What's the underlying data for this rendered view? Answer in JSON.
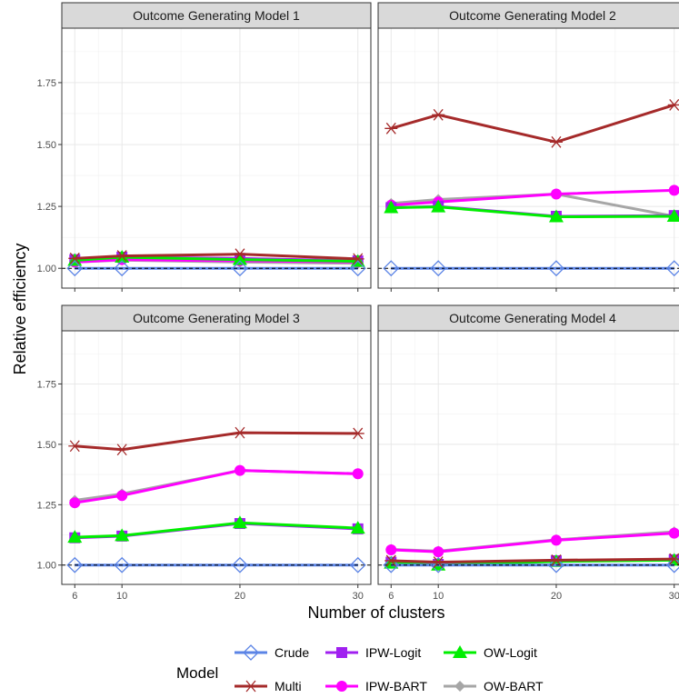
{
  "chart_data": {
    "type": "line",
    "xlabel": "Number of clusters",
    "ylabel": "Relative efficiency",
    "x": [
      6,
      10,
      20,
      30
    ],
    "x_ticks": [
      "6",
      "10",
      "20",
      "30"
    ],
    "y_ticks": [
      "1.00",
      "1.25",
      "1.50",
      "1.75"
    ],
    "ylim": [
      0.92,
      1.97
    ],
    "reference_line": 1.0,
    "legend_title": "Model",
    "legend_position": "bottom",
    "panels": [
      {
        "title": "Outcome Generating Model 1",
        "series": [
          {
            "name": "Crude",
            "values": [
              1.0,
              1.0,
              1.0,
              1.0
            ]
          },
          {
            "name": "IPW-Logit",
            "values": [
              1.035,
              1.045,
              1.04,
              1.03
            ]
          },
          {
            "name": "OW-Logit",
            "values": [
              1.032,
              1.045,
              1.035,
              1.028
            ]
          },
          {
            "name": "Multi",
            "values": [
              1.04,
              1.05,
              1.057,
              1.038
            ]
          },
          {
            "name": "IPW-BART",
            "values": [
              1.025,
              1.035,
              1.03,
              1.025
            ]
          },
          {
            "name": "OW-BART",
            "values": [
              1.025,
              1.033,
              1.025,
              1.02
            ]
          }
        ]
      },
      {
        "title": "Outcome Generating Model 2",
        "series": [
          {
            "name": "Crude",
            "values": [
              1.0,
              1.0,
              1.0,
              1.0
            ]
          },
          {
            "name": "IPW-Logit",
            "values": [
              1.245,
              1.25,
              1.21,
              1.213
            ]
          },
          {
            "name": "OW-Logit",
            "values": [
              1.245,
              1.248,
              1.208,
              1.21
            ]
          },
          {
            "name": "Multi",
            "values": [
              1.565,
              1.62,
              1.51,
              1.66
            ]
          },
          {
            "name": "IPW-BART",
            "values": [
              1.255,
              1.268,
              1.3,
              1.315
            ]
          },
          {
            "name": "OW-BART",
            "values": [
              1.262,
              1.278,
              1.3,
              1.21
            ]
          }
        ]
      },
      {
        "title": "Outcome Generating Model 3",
        "series": [
          {
            "name": "Crude",
            "values": [
              1.0,
              1.0,
              1.0,
              1.0
            ]
          },
          {
            "name": "IPW-Logit",
            "values": [
              1.113,
              1.12,
              1.172,
              1.15
            ]
          },
          {
            "name": "OW-Logit",
            "values": [
              1.115,
              1.122,
              1.175,
              1.153
            ]
          },
          {
            "name": "Multi",
            "values": [
              1.493,
              1.478,
              1.548,
              1.545
            ]
          },
          {
            "name": "IPW-BART",
            "values": [
              1.258,
              1.288,
              1.392,
              1.378
            ]
          },
          {
            "name": "OW-BART",
            "values": [
              1.268,
              1.295,
              1.392,
              1.378
            ]
          }
        ]
      },
      {
        "title": "Outcome Generating Model 4",
        "series": [
          {
            "name": "Crude",
            "values": [
              1.0,
              1.0,
              1.0,
              1.0
            ]
          },
          {
            "name": "IPW-Logit",
            "values": [
              1.012,
              1.003,
              1.018,
              1.022
            ]
          },
          {
            "name": "OW-Logit",
            "values": [
              1.008,
              1.0,
              1.015,
              1.02
            ]
          },
          {
            "name": "Multi",
            "values": [
              1.018,
              1.012,
              1.02,
              1.025
            ]
          },
          {
            "name": "IPW-BART",
            "values": [
              1.063,
              1.055,
              1.103,
              1.132
            ]
          },
          {
            "name": "OW-BART",
            "values": [
              1.065,
              1.058,
              1.105,
              1.138
            ]
          }
        ]
      }
    ],
    "series_styles": [
      {
        "name": "Crude",
        "color": "#5b84e6",
        "marker": "open-diamond"
      },
      {
        "name": "Multi",
        "color": "#a52a2a",
        "marker": "asterisk"
      },
      {
        "name": "IPW-Logit",
        "color": "#a020f0",
        "marker": "square"
      },
      {
        "name": "IPW-BART",
        "color": "#ff00ff",
        "marker": "circle"
      },
      {
        "name": "OW-Logit",
        "color": "#00ee00",
        "marker": "triangle"
      },
      {
        "name": "OW-BART",
        "color": "#a6a6a6",
        "marker": "diamond"
      }
    ]
  }
}
